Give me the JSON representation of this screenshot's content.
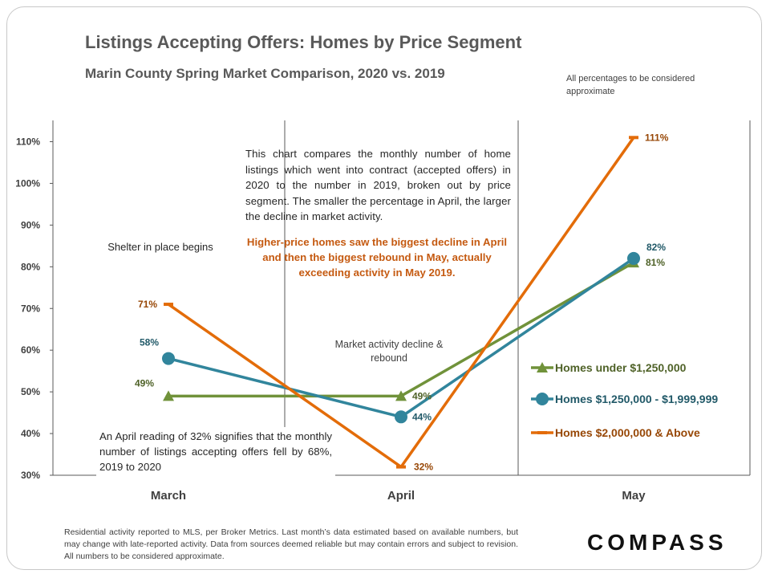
{
  "title": "Listings Accepting Offers: Homes by Price Segment",
  "subtitle": "Marin County Spring Market Comparison,  2020 vs. 2019",
  "note": "All percentages to be considered approximate",
  "annotations": {
    "explain": "This chart compares the monthly number of home listings which went into contract (accepted offers) in 2020 to the number in 2019, broken out by price segment. The smaller the percentage in April, the larger the decline in market activity.",
    "highlight": "Higher-price homes saw the biggest decline in April and then the biggest rebound in May, actually exceeding activity in May 2019.",
    "shelter": "Shelter in place  begins",
    "market": "Market activity decline & rebound",
    "april_note": "An April reading of 32% signifies that the monthly number of listings accepting offers fell by 68%, 2019 to 2020"
  },
  "footer": "Residential activity reported to MLS, per Broker Metrics. Last month’s data estimated based on available numbers, but may change with late-reported activity. Data from sources deemed reliable but may contain errors and subject to revision. All numbers to be considered approximate.",
  "brand": "COMPASS",
  "chart_data": {
    "type": "line",
    "categories": [
      "March",
      "April",
      "May"
    ],
    "ylim": [
      30,
      110
    ],
    "yticks": [
      "30%",
      "40%",
      "50%",
      "60%",
      "70%",
      "80%",
      "90%",
      "100%",
      "110%"
    ],
    "grid": false,
    "legend_position": "right",
    "series": [
      {
        "name": "Homes under $1,250,000",
        "values": [
          49,
          49,
          81
        ],
        "labels": [
          "49%",
          "49%",
          "81%"
        ],
        "color": "#70923a",
        "label_color": "#4f6228",
        "marker": "triangle"
      },
      {
        "name": "Homes $1,250,000 - $1,999,999",
        "values": [
          58,
          44,
          82
        ],
        "labels": [
          "58%",
          "44%",
          "82%"
        ],
        "color": "#31859c",
        "label_color": "#215968",
        "marker": "circle"
      },
      {
        "name": "Homes $2,000,000 & Above",
        "values": [
          71,
          32,
          111
        ],
        "labels": [
          "71%",
          "32%",
          "111%"
        ],
        "color": "#e36c09",
        "label_color": "#974706",
        "marker": "dash"
      }
    ]
  }
}
